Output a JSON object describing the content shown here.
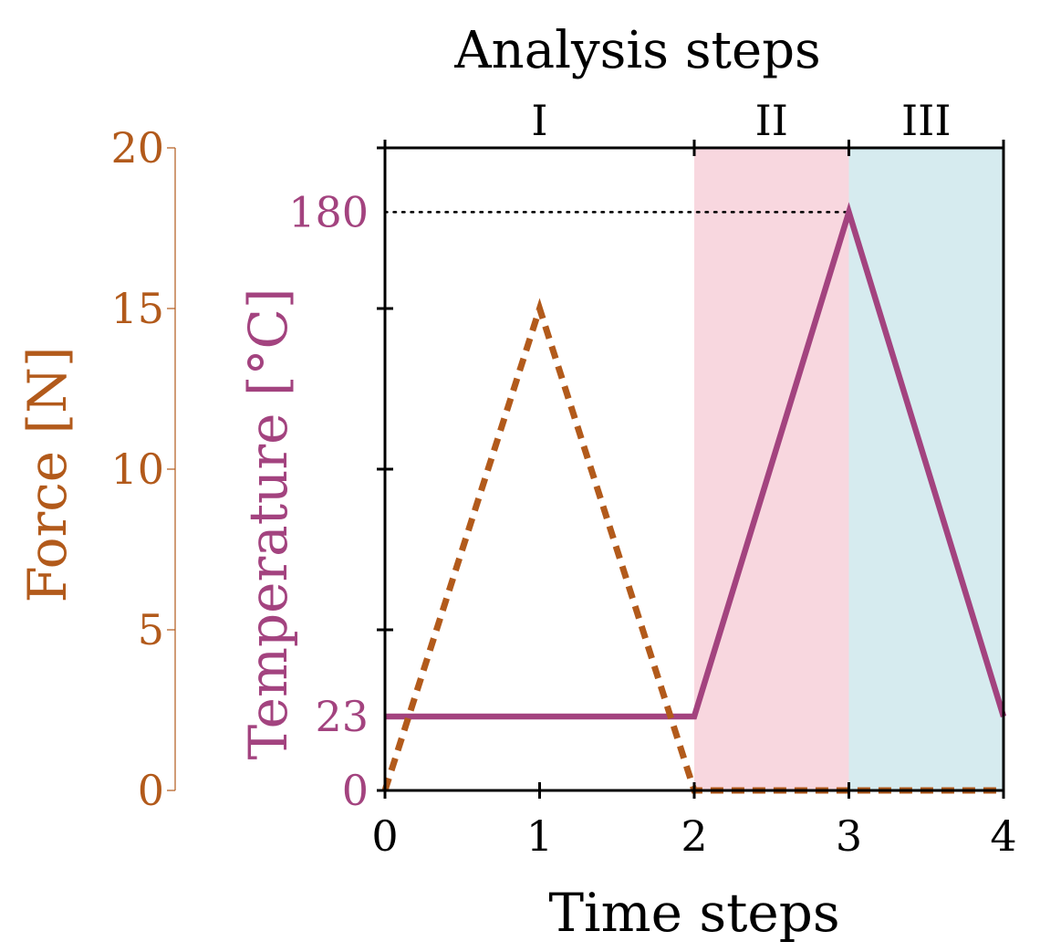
{
  "chart_data": {
    "type": "line",
    "xlabel": "Time steps",
    "xlim": [
      0,
      4
    ],
    "x_ticks": [
      0,
      1,
      2,
      3,
      4
    ],
    "x_tick_labels": [
      "0",
      "1",
      "2",
      "3",
      "4"
    ],
    "secondary_x_axis": {
      "label": "Analysis steps",
      "position": "top",
      "ticks": [
        0,
        2,
        3,
        4
      ],
      "segments": [
        {
          "label": "I",
          "from": 0,
          "to": 2,
          "shade": "none"
        },
        {
          "label": "II",
          "from": 2,
          "to": 3,
          "shade": "#f8d7df"
        },
        {
          "label": "III",
          "from": 3,
          "to": 4,
          "shade": "#d6ebef"
        }
      ]
    },
    "y_axes": [
      {
        "id": "temperature",
        "label": "Temperature [°C]",
        "color": "#a3437f",
        "ylim": [
          0,
          200
        ],
        "ticks": [
          0,
          50,
          100,
          150,
          200
        ],
        "labeled_ticks": [
          0,
          23,
          180
        ],
        "labeled_tick_labels": [
          "0",
          "23",
          "180"
        ],
        "reference_lines": [
          {
            "y": 180,
            "style": "dotted",
            "x_from": 0,
            "x_to": 3
          }
        ]
      },
      {
        "id": "force",
        "label": "Force [N]",
        "color": "#b25a1b",
        "ylim": [
          0,
          20
        ],
        "ticks": [
          0,
          5,
          10,
          15,
          20
        ],
        "tick_labels": [
          "0",
          "5",
          "10",
          "15",
          "20"
        ]
      }
    ],
    "series": [
      {
        "axis": "temperature",
        "style": "solid",
        "color": "#a3437f",
        "x": [
          0,
          2,
          3,
          4
        ],
        "y": [
          23,
          23,
          180,
          23
        ]
      },
      {
        "axis": "force",
        "style": "dashed",
        "color": "#b25a1b",
        "x": [
          0,
          1,
          2,
          4
        ],
        "y": [
          0,
          15,
          0,
          0
        ]
      }
    ],
    "grid": false
  }
}
